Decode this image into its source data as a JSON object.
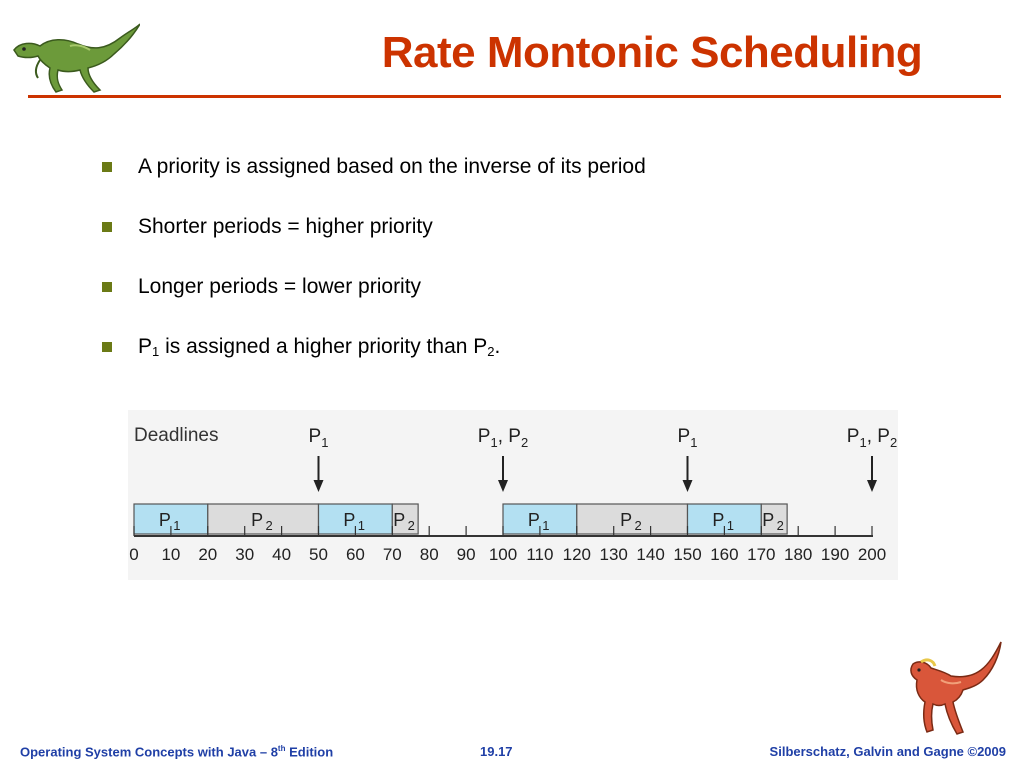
{
  "slide": {
    "title": "Rate Montonic Scheduling"
  },
  "bullets": [
    {
      "text": "A priority is assigned based on the inverse of its period"
    },
    {
      "text": "Shorter periods = higher priority"
    },
    {
      "text": "Longer periods = lower priority"
    },
    {
      "p1": "P",
      "p1_sub": "1",
      "mid": " is assigned a higher priority than P",
      "p2_sub": "2",
      "end": "."
    }
  ],
  "diagram": {
    "deadlines_label": "Deadlines",
    "deadlines": [
      {
        "time": 50,
        "label": "P",
        "sub": "1"
      },
      {
        "time": 100,
        "label": "P",
        "sub": "1",
        "label2": ", P",
        "sub2": "2"
      },
      {
        "time": 150,
        "label": "P",
        "sub": "1"
      },
      {
        "time": 200,
        "label": "P",
        "sub": "1",
        "label2": ", P",
        "sub2": "2"
      }
    ],
    "segments": [
      {
        "start": 0,
        "end": 20,
        "label": "P",
        "sub": "1",
        "color": "#b3e0f2"
      },
      {
        "start": 20,
        "end": 50,
        "label": "P",
        "sub": "2",
        "color": "#dcdcdc"
      },
      {
        "start": 50,
        "end": 70,
        "label": "P",
        "sub": "1",
        "color": "#b3e0f2"
      },
      {
        "start": 70,
        "end": 77,
        "label": "P",
        "sub": "2",
        "color": "#dcdcdc"
      },
      {
        "start": 100,
        "end": 120,
        "label": "P",
        "sub": "1",
        "color": "#b3e0f2"
      },
      {
        "start": 120,
        "end": 150,
        "label": "P",
        "sub": "2",
        "color": "#dcdcdc"
      },
      {
        "start": 150,
        "end": 170,
        "label": "P",
        "sub": "1",
        "color": "#b3e0f2"
      },
      {
        "start": 170,
        "end": 177,
        "label": "P",
        "sub": "2",
        "color": "#dcdcdc"
      }
    ],
    "ticks": [
      "0",
      "10",
      "20",
      "30",
      "40",
      "50",
      "60",
      "70",
      "80",
      "90",
      "100",
      "110",
      "120",
      "130",
      "140",
      "150",
      "160",
      "170",
      "180",
      "190",
      "200"
    ]
  },
  "footer": {
    "left_a": "Operating System Concepts with Java – 8",
    "left_sup": "th",
    "left_b": " Edition",
    "center": "19.17",
    "right": "Silberschatz, Galvin and Gagne ©2009"
  },
  "icons": {
    "top_logo": "green-dinosaur-icon",
    "bottom_logo": "red-dinosaur-icon"
  }
}
